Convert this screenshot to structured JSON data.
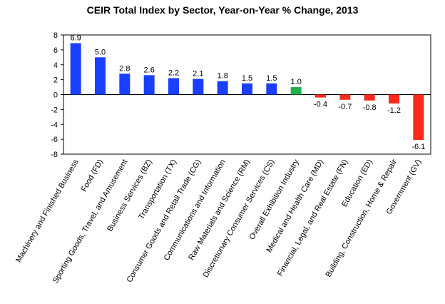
{
  "chart_data": {
    "type": "bar",
    "title": "CEIR Total Index by Sector, Year-on-Year % Change, 2013",
    "xlabel": "",
    "ylabel": "",
    "ylim": [
      -8,
      8
    ],
    "yticks": [
      8,
      6,
      4,
      2,
      0,
      -2,
      -4,
      -6,
      -8
    ],
    "grid": false,
    "legend": "none",
    "categories": [
      "Machinery and Finished Business",
      "Food (FD)",
      "Sporting Goods, Travel, and Amusement",
      "Business Services (BZ)",
      "Transportation (TX)",
      "Consumer Goods and Retail Trade (CG)",
      "Communications and Information",
      "Raw Materials and Science (RM)",
      "Discretionary Consumer Services (CS)",
      "Overall Exhibition Industry",
      "Medical and Health Care (MD)",
      "Financial, Legal, and Real Estate (FN)",
      "Education (ED)",
      "Building, Construction, Home & Repair",
      "Government (GV)"
    ],
    "values": [
      6.9,
      5.0,
      2.8,
      2.6,
      2.2,
      2.1,
      1.8,
      1.5,
      1.5,
      1.0,
      -0.4,
      -0.7,
      -0.8,
      -1.2,
      -6.1
    ],
    "data_labels": [
      "6.9",
      "5.0",
      "2.8",
      "2.6",
      "2.2",
      "2.1",
      "1.8",
      "1.5",
      "1.5",
      "1.0",
      "-0.4",
      "-0.7",
      "-0.8",
      "-1.2",
      "-6.1"
    ],
    "bar_colors": [
      "#1a3fff",
      "#1a3fff",
      "#1a3fff",
      "#1a3fff",
      "#1a3fff",
      "#1a3fff",
      "#1a3fff",
      "#1a3fff",
      "#1a3fff",
      "#22b14c",
      "#ff2a1a",
      "#ff2a1a",
      "#ff2a1a",
      "#ff2a1a",
      "#ff2a1a"
    ]
  }
}
